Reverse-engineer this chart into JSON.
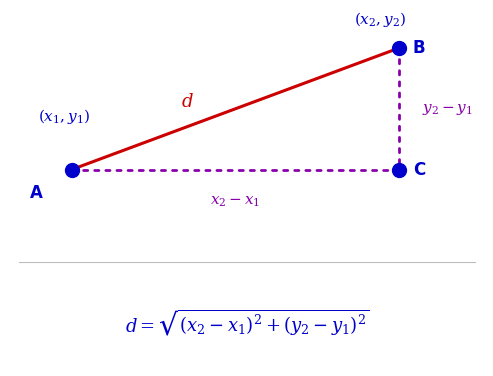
{
  "bg_color": "#ffffff",
  "point_A": [
    0.13,
    0.38
  ],
  "point_B": [
    0.82,
    0.88
  ],
  "point_C": [
    0.82,
    0.38
  ],
  "point_color": "#0000cc",
  "line_AB_color": "#cc0000",
  "dotted_color": "#8800aa",
  "blue_color": "#0000cc",
  "purple_color": "#8800aa",
  "red_color": "#cc0000",
  "label_A": "A",
  "label_B": "B",
  "label_C": "C",
  "label_coord_A": "$(x_1, y_1)$",
  "label_coord_B": "$(x_2, y_2)$",
  "label_d": "$d$",
  "label_x2x1": "$x_2 - x_1$",
  "label_y2y1": "$y_2 - y_1$",
  "formula": "$d = \\sqrt{(x_2 - x_1)^2 + (y_2 - y_1)^2}$",
  "point_size": 100
}
